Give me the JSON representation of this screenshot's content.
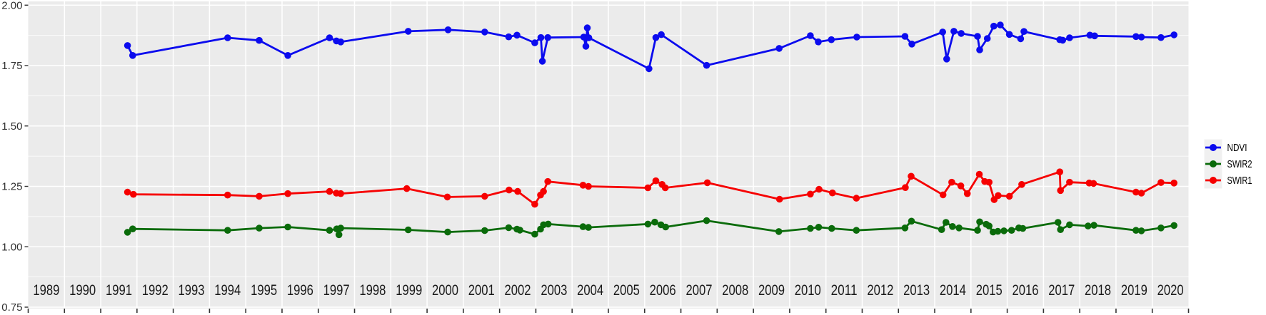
{
  "chart_data": {
    "type": "line",
    "title": "",
    "xlabel": "",
    "ylabel": "",
    "x_domain": [
      1989,
      2021
    ],
    "y_domain": [
      0.75,
      2.0
    ],
    "grid": "white major+minor gridlines on gray panel",
    "panel_bg": "#EBEBEB",
    "legend": {
      "position": "right-center",
      "key_bg": "#F0F0F0"
    },
    "y_ticks": [
      {
        "value": 2.0,
        "label": "2.00"
      },
      {
        "value": 1.75,
        "label": "1.75"
      },
      {
        "value": 1.5,
        "label": "1.50"
      },
      {
        "value": 1.25,
        "label": "1.25"
      },
      {
        "value": 1.0,
        "label": "1.00"
      },
      {
        "value": 0.75,
        "label": "0.75"
      }
    ],
    "x_tick_years": [
      1989,
      1990,
      1991,
      1992,
      1993,
      1994,
      1995,
      1996,
      1997,
      1998,
      1999,
      2000,
      2001,
      2002,
      2003,
      2004,
      2005,
      2006,
      2007,
      2008,
      2009,
      2010,
      2011,
      2012,
      2013,
      2014,
      2015,
      2016,
      2017,
      2018,
      2019,
      2020
    ],
    "series": [
      {
        "name": "NDVI",
        "color": "#0B0BEE",
        "points": [
          [
            1991.74,
            1.833
          ],
          [
            1991.88,
            1.792
          ],
          [
            1994.5,
            1.865
          ],
          [
            1995.37,
            1.854
          ],
          [
            1996.16,
            1.792
          ],
          [
            1997.31,
            1.865
          ],
          [
            1997.5,
            1.852
          ],
          [
            1997.62,
            1.848
          ],
          [
            1999.48,
            1.892
          ],
          [
            2000.58,
            1.898
          ],
          [
            2001.59,
            1.889
          ],
          [
            2002.25,
            1.869
          ],
          [
            2002.48,
            1.876
          ],
          [
            2002.97,
            1.844
          ],
          [
            2003.14,
            1.866
          ],
          [
            2003.18,
            1.768
          ],
          [
            2003.33,
            1.866
          ],
          [
            2004.32,
            1.868
          ],
          [
            2004.38,
            1.83
          ],
          [
            2004.42,
            1.906
          ],
          [
            2004.46,
            1.865
          ],
          [
            2006.12,
            1.737
          ],
          [
            2006.31,
            1.866
          ],
          [
            2006.46,
            1.878
          ],
          [
            2007.71,
            1.751
          ],
          [
            2009.71,
            1.821
          ],
          [
            2010.57,
            1.874
          ],
          [
            2010.79,
            1.848
          ],
          [
            2011.15,
            1.857
          ],
          [
            2011.85,
            1.868
          ],
          [
            2013.18,
            1.871
          ],
          [
            2013.37,
            1.839
          ],
          [
            2014.22,
            1.889
          ],
          [
            2014.33,
            1.777
          ],
          [
            2014.53,
            1.892
          ],
          [
            2014.73,
            1.883
          ],
          [
            2015.18,
            1.871
          ],
          [
            2015.24,
            1.815
          ],
          [
            2015.45,
            1.862
          ],
          [
            2015.63,
            1.913
          ],
          [
            2015.81,
            1.918
          ],
          [
            2016.06,
            1.879
          ],
          [
            2016.37,
            1.861
          ],
          [
            2016.46,
            1.891
          ],
          [
            2017.45,
            1.857
          ],
          [
            2017.53,
            1.855
          ],
          [
            2017.72,
            1.865
          ],
          [
            2018.28,
            1.876
          ],
          [
            2018.41,
            1.873
          ],
          [
            2019.55,
            1.87
          ],
          [
            2019.7,
            1.868
          ],
          [
            2020.24,
            1.866
          ],
          [
            2020.6,
            1.877
          ]
        ]
      },
      {
        "name": "SWIR2",
        "color": "#0A6B0A",
        "points": [
          [
            1991.74,
            1.06
          ],
          [
            1991.88,
            1.074
          ],
          [
            1994.5,
            1.068
          ],
          [
            1995.37,
            1.077
          ],
          [
            1996.16,
            1.082
          ],
          [
            1997.31,
            1.068
          ],
          [
            1997.51,
            1.074
          ],
          [
            1997.57,
            1.05
          ],
          [
            1997.62,
            1.077
          ],
          [
            1999.48,
            1.07
          ],
          [
            2000.57,
            1.061
          ],
          [
            2001.59,
            1.067
          ],
          [
            2002.25,
            1.079
          ],
          [
            2002.48,
            1.073
          ],
          [
            2002.56,
            1.069
          ],
          [
            2002.97,
            1.052
          ],
          [
            2003.13,
            1.073
          ],
          [
            2003.21,
            1.091
          ],
          [
            2003.34,
            1.094
          ],
          [
            2004.3,
            1.083
          ],
          [
            2004.45,
            1.08
          ],
          [
            2006.09,
            1.094
          ],
          [
            2006.28,
            1.102
          ],
          [
            2006.45,
            1.091
          ],
          [
            2006.58,
            1.082
          ],
          [
            2007.71,
            1.108
          ],
          [
            2009.7,
            1.063
          ],
          [
            2010.57,
            1.076
          ],
          [
            2010.8,
            1.081
          ],
          [
            2011.16,
            1.076
          ],
          [
            2011.84,
            1.068
          ],
          [
            2013.18,
            1.078
          ],
          [
            2013.36,
            1.106
          ],
          [
            2014.19,
            1.071
          ],
          [
            2014.31,
            1.101
          ],
          [
            2014.49,
            1.084
          ],
          [
            2014.67,
            1.078
          ],
          [
            2015.18,
            1.068
          ],
          [
            2015.24,
            1.103
          ],
          [
            2015.42,
            1.093
          ],
          [
            2015.5,
            1.086
          ],
          [
            2015.61,
            1.061
          ],
          [
            2015.74,
            1.064
          ],
          [
            2015.91,
            1.066
          ],
          [
            2016.12,
            1.068
          ],
          [
            2016.32,
            1.078
          ],
          [
            2016.43,
            1.076
          ],
          [
            2017.4,
            1.101
          ],
          [
            2017.47,
            1.071
          ],
          [
            2017.72,
            1.091
          ],
          [
            2018.23,
            1.086
          ],
          [
            2018.39,
            1.089
          ],
          [
            2019.55,
            1.068
          ],
          [
            2019.7,
            1.066
          ],
          [
            2020.24,
            1.078
          ],
          [
            2020.6,
            1.088
          ]
        ]
      },
      {
        "name": "SWIR1",
        "color": "#F60000",
        "points": [
          [
            1991.74,
            1.226
          ],
          [
            1991.9,
            1.217
          ],
          [
            1994.5,
            1.214
          ],
          [
            1995.37,
            1.209
          ],
          [
            1996.16,
            1.22
          ],
          [
            1997.31,
            1.229
          ],
          [
            1997.5,
            1.222
          ],
          [
            1997.62,
            1.22
          ],
          [
            1999.44,
            1.241
          ],
          [
            2000.56,
            1.206
          ],
          [
            2001.59,
            1.209
          ],
          [
            2002.26,
            1.235
          ],
          [
            2002.5,
            1.229
          ],
          [
            2002.97,
            1.176
          ],
          [
            2003.13,
            1.214
          ],
          [
            2003.21,
            1.229
          ],
          [
            2003.33,
            1.27
          ],
          [
            2004.3,
            1.255
          ],
          [
            2004.45,
            1.25
          ],
          [
            2006.09,
            1.244
          ],
          [
            2006.31,
            1.273
          ],
          [
            2006.48,
            1.258
          ],
          [
            2006.57,
            1.244
          ],
          [
            2007.73,
            1.265
          ],
          [
            2009.72,
            1.197
          ],
          [
            2010.57,
            1.218
          ],
          [
            2010.81,
            1.238
          ],
          [
            2011.18,
            1.223
          ],
          [
            2011.84,
            1.201
          ],
          [
            2013.19,
            1.245
          ],
          [
            2013.35,
            1.292
          ],
          [
            2014.23,
            1.215
          ],
          [
            2014.47,
            1.267
          ],
          [
            2014.72,
            1.252
          ],
          [
            2014.9,
            1.22
          ],
          [
            2015.23,
            1.3
          ],
          [
            2015.38,
            1.27
          ],
          [
            2015.5,
            1.267
          ],
          [
            2015.64,
            1.195
          ],
          [
            2015.75,
            1.212
          ],
          [
            2016.06,
            1.209
          ],
          [
            2016.4,
            1.258
          ],
          [
            2017.45,
            1.31
          ],
          [
            2017.47,
            1.233
          ],
          [
            2017.72,
            1.267
          ],
          [
            2018.26,
            1.264
          ],
          [
            2018.38,
            1.262
          ],
          [
            2019.55,
            1.226
          ],
          [
            2019.7,
            1.222
          ],
          [
            2020.24,
            1.266
          ],
          [
            2020.6,
            1.264
          ]
        ]
      }
    ]
  }
}
